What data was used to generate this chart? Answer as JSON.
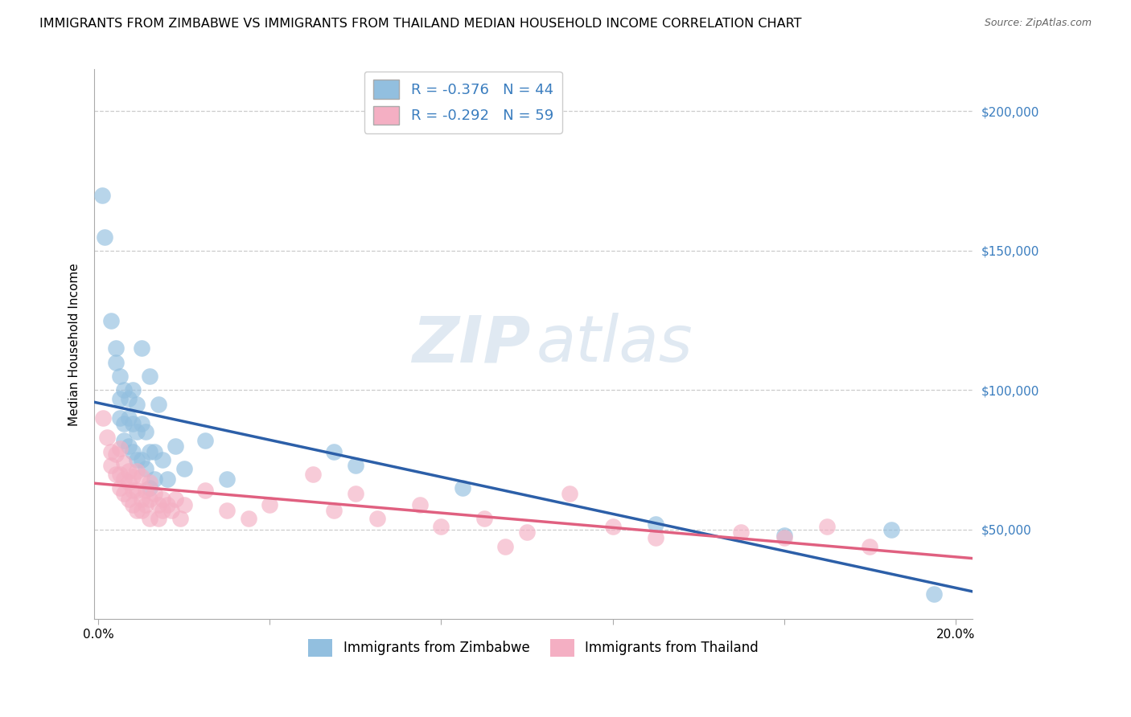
{
  "title": "IMMIGRANTS FROM ZIMBABWE VS IMMIGRANTS FROM THAILAND MEDIAN HOUSEHOLD INCOME CORRELATION CHART",
  "source": "Source: ZipAtlas.com",
  "ylabel": "Median Household Income",
  "R_zim": -0.376,
  "N_zim": 44,
  "R_thai": -0.292,
  "N_thai": 59,
  "legend_labels_bottom": [
    "Immigrants from Zimbabwe",
    "Immigrants from Thailand"
  ],
  "ytick_labels": [
    "$50,000",
    "$100,000",
    "$150,000",
    "$200,000"
  ],
  "ytick_values": [
    50000,
    100000,
    150000,
    200000
  ],
  "ymin": 18000,
  "ymax": 215000,
  "xmin": -0.001,
  "xmax": 0.204,
  "zimbabwe_color": "#92bfdf",
  "thailand_color": "#f4afc3",
  "zimbabwe_line_color": "#2c5fa8",
  "thailand_line_color": "#e06080",
  "ytick_color": "#3a7dbf",
  "title_fontsize": 11.5,
  "axis_fontsize": 11,
  "tick_fontsize": 11,
  "source_fontsize": 9,
  "zimbabwe_scatter": [
    [
      0.0008,
      170000
    ],
    [
      0.0015,
      155000
    ],
    [
      0.003,
      125000
    ],
    [
      0.004,
      115000
    ],
    [
      0.004,
      110000
    ],
    [
      0.005,
      105000
    ],
    [
      0.005,
      97000
    ],
    [
      0.005,
      90000
    ],
    [
      0.006,
      100000
    ],
    [
      0.006,
      88000
    ],
    [
      0.006,
      82000
    ],
    [
      0.007,
      97000
    ],
    [
      0.007,
      90000
    ],
    [
      0.007,
      80000
    ],
    [
      0.008,
      100000
    ],
    [
      0.008,
      88000
    ],
    [
      0.008,
      78000
    ],
    [
      0.009,
      95000
    ],
    [
      0.009,
      85000
    ],
    [
      0.009,
      75000
    ],
    [
      0.01,
      115000
    ],
    [
      0.01,
      88000
    ],
    [
      0.01,
      75000
    ],
    [
      0.011,
      85000
    ],
    [
      0.011,
      72000
    ],
    [
      0.012,
      105000
    ],
    [
      0.012,
      78000
    ],
    [
      0.012,
      65000
    ],
    [
      0.013,
      78000
    ],
    [
      0.014,
      95000
    ],
    [
      0.015,
      75000
    ],
    [
      0.016,
      68000
    ],
    [
      0.018,
      80000
    ],
    [
      0.02,
      72000
    ],
    [
      0.025,
      82000
    ],
    [
      0.03,
      68000
    ],
    [
      0.055,
      78000
    ],
    [
      0.06,
      73000
    ],
    [
      0.085,
      65000
    ],
    [
      0.013,
      68000
    ],
    [
      0.13,
      52000
    ],
    [
      0.16,
      48000
    ],
    [
      0.185,
      50000
    ],
    [
      0.195,
      27000
    ]
  ],
  "thailand_scatter": [
    [
      0.001,
      90000
    ],
    [
      0.002,
      83000
    ],
    [
      0.003,
      78000
    ],
    [
      0.003,
      73000
    ],
    [
      0.004,
      77000
    ],
    [
      0.004,
      70000
    ],
    [
      0.005,
      79000
    ],
    [
      0.005,
      70000
    ],
    [
      0.005,
      65000
    ],
    [
      0.006,
      74000
    ],
    [
      0.006,
      68000
    ],
    [
      0.006,
      63000
    ],
    [
      0.007,
      71000
    ],
    [
      0.007,
      67000
    ],
    [
      0.007,
      61000
    ],
    [
      0.008,
      69000
    ],
    [
      0.008,
      64000
    ],
    [
      0.008,
      59000
    ],
    [
      0.009,
      71000
    ],
    [
      0.009,
      64000
    ],
    [
      0.009,
      57000
    ],
    [
      0.01,
      69000
    ],
    [
      0.01,
      61000
    ],
    [
      0.01,
      57000
    ],
    [
      0.011,
      64000
    ],
    [
      0.011,
      59000
    ],
    [
      0.012,
      67000
    ],
    [
      0.012,
      61000
    ],
    [
      0.012,
      54000
    ],
    [
      0.013,
      63000
    ],
    [
      0.014,
      59000
    ],
    [
      0.014,
      54000
    ],
    [
      0.015,
      61000
    ],
    [
      0.015,
      57000
    ],
    [
      0.016,
      59000
    ],
    [
      0.017,
      57000
    ],
    [
      0.018,
      61000
    ],
    [
      0.019,
      54000
    ],
    [
      0.02,
      59000
    ],
    [
      0.025,
      64000
    ],
    [
      0.03,
      57000
    ],
    [
      0.035,
      54000
    ],
    [
      0.04,
      59000
    ],
    [
      0.05,
      70000
    ],
    [
      0.055,
      57000
    ],
    [
      0.06,
      63000
    ],
    [
      0.065,
      54000
    ],
    [
      0.075,
      59000
    ],
    [
      0.08,
      51000
    ],
    [
      0.09,
      54000
    ],
    [
      0.095,
      44000
    ],
    [
      0.1,
      49000
    ],
    [
      0.11,
      63000
    ],
    [
      0.12,
      51000
    ],
    [
      0.13,
      47000
    ],
    [
      0.15,
      49000
    ],
    [
      0.16,
      47000
    ],
    [
      0.17,
      51000
    ],
    [
      0.18,
      44000
    ]
  ]
}
